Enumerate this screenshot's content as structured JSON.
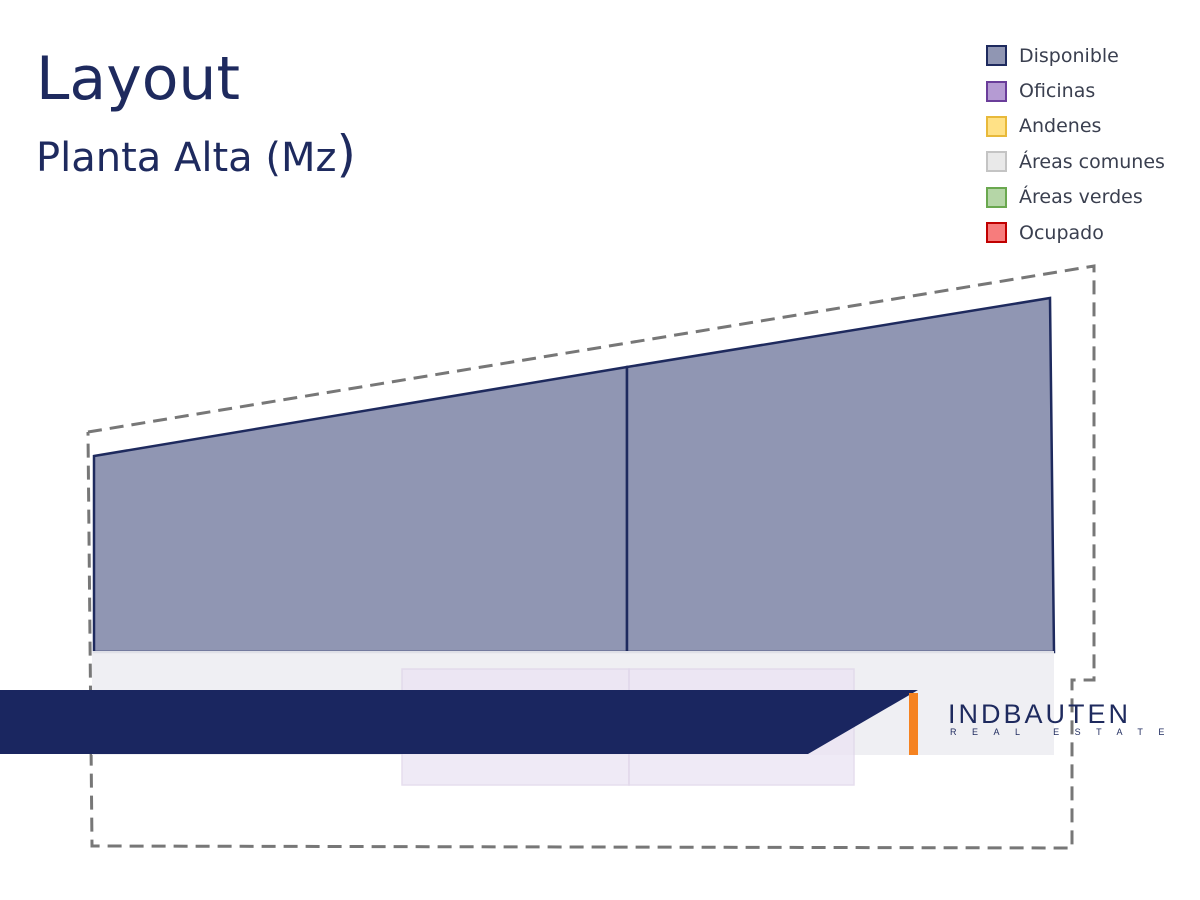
{
  "header": {
    "title": "Layout",
    "subtitle": "Planta Alta (Mz",
    "subtitle_close": ")"
  },
  "legend": {
    "items": [
      {
        "label": "Disponible",
        "fill": "#9096b3",
        "border": "#1e2a5e"
      },
      {
        "label": "Oficinas",
        "fill": "#b59bd3",
        "border": "#6a3d9a"
      },
      {
        "label": "Andenes",
        "fill": "#ffe186",
        "border": "#e8b93a"
      },
      {
        "label": "Áreas comunes",
        "fill": "#e9e9e9",
        "border": "#c4c4c4"
      },
      {
        "label": "Áreas verdes",
        "fill": "#b5d6a7",
        "border": "#6aa84f"
      },
      {
        "label": "Ocupado",
        "fill": "#f77c7c",
        "border": "#c00000"
      }
    ]
  },
  "plan": {
    "units": [
      {
        "name": "unit-left",
        "status": "Disponible"
      },
      {
        "name": "unit-right",
        "status": "Disponible"
      }
    ]
  },
  "colors": {
    "navy": "#1a2660",
    "accent": "#f58220",
    "outline": "#777777"
  },
  "brand": {
    "name": "INDBAUTEN",
    "tagline": "REAL ESTATE"
  }
}
